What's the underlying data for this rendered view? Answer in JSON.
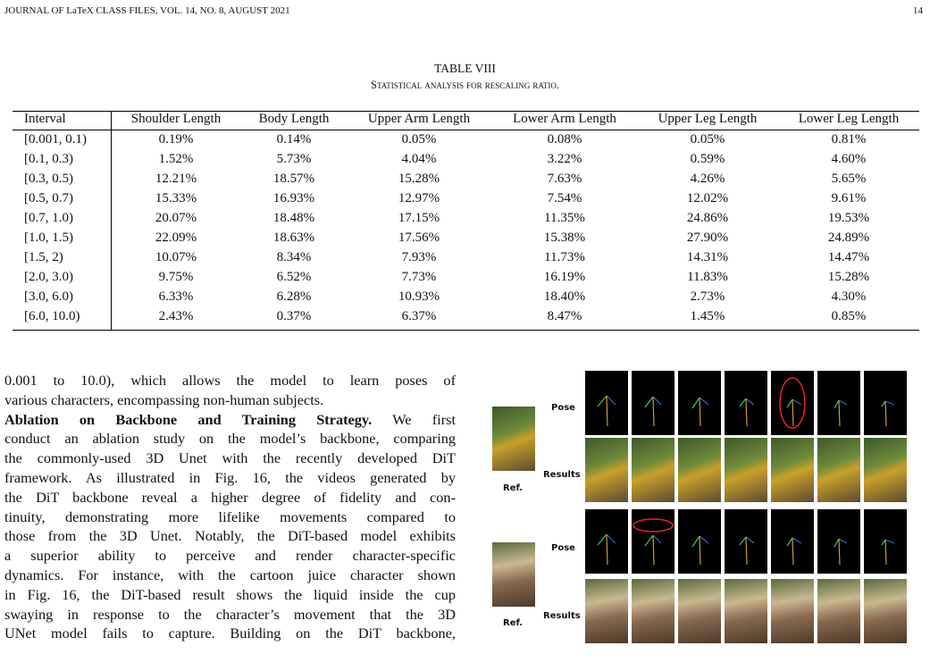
{
  "header": {
    "journal": "JOURNAL OF LaTeX CLASS FILES, VOL. 14, NO. 8, AUGUST 2021",
    "page": "14"
  },
  "table": {
    "label": "TABLE VIII",
    "caption": "Statistical analysis for rescaling ratio.",
    "columns": [
      "Interval",
      "Shoulder Length",
      "Body Length",
      "Upper Arm Length",
      "Lower Arm Length",
      "Upper Leg Length",
      "Lower Leg Length"
    ],
    "rows": [
      [
        "[0.001, 0.1)",
        "0.19%",
        "0.14%",
        "0.05%",
        "0.08%",
        "0.05%",
        "0.81%"
      ],
      [
        "[0.1, 0.3)",
        "1.52%",
        "5.73%",
        "4.04%",
        "3.22%",
        "0.59%",
        "4.60%"
      ],
      [
        "[0.3, 0.5)",
        "12.21%",
        "18.57%",
        "15.28%",
        "7.63%",
        "4.26%",
        "5.65%"
      ],
      [
        "[0.5, 0.7)",
        "15.33%",
        "16.93%",
        "12.97%",
        "7.54%",
        "12.02%",
        "9.61%"
      ],
      [
        "[0.7, 1.0)",
        "20.07%",
        "18.48%",
        "17.15%",
        "11.35%",
        "24.86%",
        "19.53%"
      ],
      [
        "[1.0, 1.5)",
        "22.09%",
        "18.63%",
        "17.56%",
        "15.38%",
        "27.90%",
        "24.89%"
      ],
      [
        "[1.5, 2)",
        "10.07%",
        "8.34%",
        "7.93%",
        "11.73%",
        "14.31%",
        "14.47%"
      ],
      [
        "[2.0, 3.0)",
        "9.75%",
        "6.52%",
        "7.73%",
        "16.19%",
        "11.83%",
        "15.28%"
      ],
      [
        "[3.0, 6.0)",
        "6.33%",
        "6.28%",
        "10.93%",
        "18.40%",
        "2.73%",
        "4.30%"
      ],
      [
        "[6.0, 10.0)",
        "2.43%",
        "0.37%",
        "6.37%",
        "8.47%",
        "1.45%",
        "0.85%"
      ]
    ]
  },
  "body": {
    "paragraph1": [
      "0.001 to 10.0), which allows the model to learn poses of",
      "various characters, encompassing non-human subjects."
    ],
    "heading": "Ablation on Backbone and Training Strategy.",
    "heading_rest": " We first",
    "paragraph2": [
      "conduct an ablation study on the model’s backbone, comparing",
      "the commonly-used 3D Unet with the recently developed DiT",
      "framework. As illustrated in Fig. 16, the videos generated by",
      "the DiT backbone reveal a higher degree of fidelity and con-",
      "tinuity, demonstrating more lifelike movements compared to",
      "those from the 3D Unet. Notably, the DiT-based model exhibits",
      "a superior ability to perceive and render character-specific",
      "dynamics. For instance, with the cartoon juice character shown",
      "in Fig. 16, the DiT-based result shows the liquid inside the cup",
      "swaying in response to the character’s movement that the 3D",
      "UNet model fails to capture. Building on the DiT backbone,"
    ]
  },
  "figure": {
    "pose_label": "Pose",
    "results_label": "Results",
    "ref_label": "Ref."
  }
}
